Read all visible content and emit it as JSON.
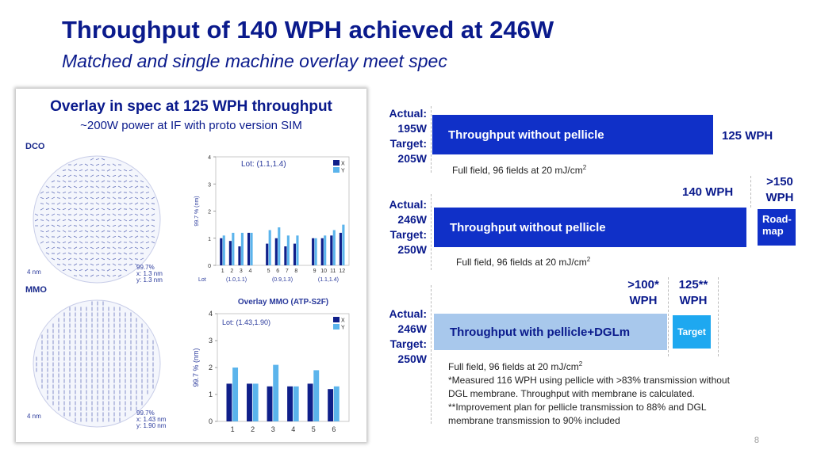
{
  "title": "Throughput of 140 WPH achieved at 246W",
  "subtitle": "Matched and single machine overlay meet spec",
  "panel": {
    "title": "Overlay in spec at 125 WPH throughput",
    "subtitle": "~200W power at IF with proto version SIM",
    "dco": {
      "label": "DCO",
      "wafer_scale": "4 nm",
      "wafer_stats": [
        "99.7%",
        "x: 1.3 nm",
        "y: 1.3 nm"
      ],
      "chart": {
        "type": "bar",
        "legend_title": "Lot:",
        "legend_value": "(1.1,1.4)",
        "series_names": [
          "X",
          "Y"
        ],
        "ylabel": "99.7 % (nm)",
        "y_ticks": [
          "0",
          "1",
          "2",
          "3",
          "4"
        ],
        "ylim": [
          0,
          4
        ],
        "x_ticks": [
          "1",
          "2",
          "3",
          "4",
          "5",
          "6",
          "7",
          "8",
          "9",
          "10",
          "11",
          "12"
        ],
        "x": [
          1,
          2,
          3,
          4,
          5,
          6,
          7,
          8,
          9,
          10,
          11,
          12
        ],
        "x_axis_title": "Lot",
        "groups": [
          "(1.0,1.1)",
          "(0.9,1.3)",
          "(1.1,1.4)"
        ],
        "series": [
          {
            "name": "X",
            "values": [
              1.0,
              0.9,
              0.7,
              1.2,
              0.8,
              1.0,
              0.7,
              0.8,
              1.0,
              1.0,
              1.1,
              1.2
            ]
          },
          {
            "name": "Y",
            "values": [
              1.1,
              1.2,
              1.2,
              1.2,
              1.3,
              1.4,
              1.1,
              1.1,
              1.0,
              1.1,
              1.3,
              1.5
            ]
          }
        ],
        "colors": {
          "X": "#0f1f8a",
          "Y": "#5bb4ec"
        }
      }
    },
    "mmo": {
      "label": "MMO",
      "wafer_scale": "4 nm",
      "wafer_stats": [
        "99.7%",
        "x: 1.43 nm",
        "y: 1.90 nm"
      ],
      "chart": {
        "type": "bar",
        "title": "Overlay MMO (ATP-S2F)",
        "legend_title": "Lot:",
        "legend_value": "(1.43,1.90)",
        "series_names": [
          "X",
          "Y"
        ],
        "ylabel": "99.7 % (nm)",
        "y_ticks": [
          "0",
          "1",
          "2",
          "3",
          "4"
        ],
        "ylim": [
          0,
          4
        ],
        "x_ticks": [
          "1",
          "2",
          "3",
          "4",
          "5",
          "6"
        ],
        "x": [
          1,
          2,
          3,
          4,
          5,
          6
        ],
        "series": [
          {
            "name": "X",
            "values": [
              1.4,
              1.4,
              1.3,
              1.3,
              1.4,
              1.2
            ]
          },
          {
            "name": "Y",
            "values": [
              2.0,
              1.4,
              2.1,
              1.3,
              1.9,
              1.3
            ]
          }
        ],
        "colors": {
          "X": "#0f1f8a",
          "Y": "#5bb4ec"
        }
      }
    }
  },
  "rows": [
    {
      "spec": [
        "Actual:",
        "195W",
        "Target:",
        "205W"
      ],
      "bar_label": "Throughput without pellicle",
      "value": "125 WPH",
      "note": "Full field, 96 fields at 20 mJ/cm",
      "note_sup": "2",
      "color": "#1030c8"
    },
    {
      "spec": [
        "Actual:",
        "246W",
        "Target:",
        "250W"
      ],
      "bar_label": "Throughput without pellicle",
      "value": "140 WPH",
      "target_value": ">150 WPH",
      "target_value_lines": [
        ">150",
        "WPH"
      ],
      "roadmap_lines": [
        "Road-",
        "map"
      ],
      "note": "Full field, 96 fields at 20 mJ/cm",
      "note_sup": "2",
      "color": "#1030c8"
    },
    {
      "spec": [
        "Actual:",
        "246W",
        "Target:",
        "250W"
      ],
      "bar_label": "Throughput with pellicle+DGLm",
      "value_lines": [
        ">100*",
        "WPH"
      ],
      "target_value_lines": [
        "125**",
        "WPH"
      ],
      "target_label": "Target",
      "note": "Full field, 96 fields at 20 mJ/cm",
      "note_sup": "2",
      "footnotes": [
        "*Measured 116 WPH using pellicle with >83% transmission without",
        "DGL membrane. Throughput with membrane is calculated.",
        "**Improvement plan for pellicle transmission to 88% and DGL",
        "membrane transmission to 90% included"
      ],
      "color": "#a8c8ec",
      "target_color": "#1ea8f0"
    }
  ],
  "page_number": "8"
}
